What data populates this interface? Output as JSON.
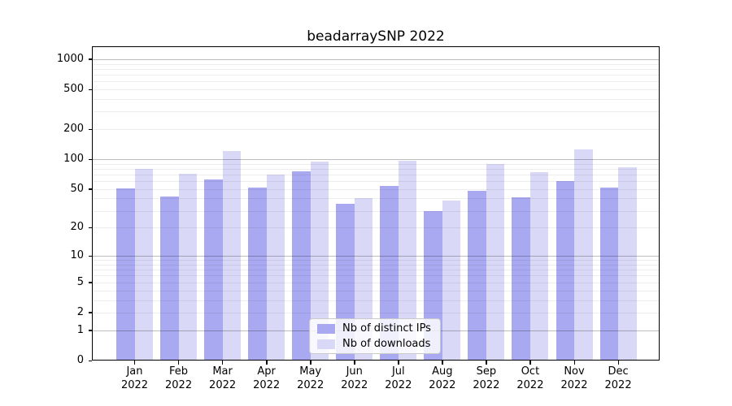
{
  "title": "beadarraySNP 2022",
  "y_axis": {
    "ticks": [
      0,
      1,
      2,
      5,
      10,
      20,
      50,
      100,
      200,
      500,
      1000
    ],
    "scale": "log10(value+1)"
  },
  "x_axis": {
    "year_label": "2022",
    "month_labels": [
      "Jan",
      "Feb",
      "Mar",
      "Apr",
      "May",
      "Jun",
      "Jul",
      "Aug",
      "Sep",
      "Oct",
      "Nov",
      "Dec"
    ]
  },
  "legend": {
    "items": [
      {
        "label": "Nb of distinct IPs",
        "color": "#a9a9f1"
      },
      {
        "label": "Nb of downloads",
        "color": "#d9d9f7"
      }
    ]
  },
  "colors": {
    "ips_bar": "#a9a9f1",
    "downloads_bar": "#d9d9f7",
    "major_grid": "rgba(0,0,0,0.26)",
    "minor_grid": "rgba(0,0,0,0.07)",
    "axis": "#000000",
    "background": "#ffffff"
  },
  "chart_data": {
    "type": "bar",
    "title": "beadarraySNP 2022",
    "categories": [
      "Jan 2022",
      "Feb 2022",
      "Mar 2022",
      "Apr 2022",
      "May 2022",
      "Jun 2022",
      "Jul 2022",
      "Aug 2022",
      "Sep 2022",
      "Oct 2022",
      "Nov 2022",
      "Dec 2022"
    ],
    "series": [
      {
        "name": "Nb of distinct IPs",
        "color": "#a9a9f1",
        "values": [
          51,
          42,
          63,
          52,
          76,
          35,
          54,
          30,
          48,
          41,
          60,
          52
        ]
      },
      {
        "name": "Nb of downloads",
        "color": "#d9d9f7",
        "values": [
          80,
          72,
          120,
          70,
          95,
          40,
          96,
          38,
          90,
          74,
          125,
          83
        ]
      }
    ],
    "y_scale": "log10(value+1)",
    "y_ticks": [
      0,
      1,
      2,
      5,
      10,
      20,
      50,
      100,
      200,
      500,
      1000
    ],
    "y_grid_major": [
      1,
      10,
      100,
      1000
    ],
    "y_grid_minor": [
      2,
      3,
      4,
      5,
      6,
      7,
      8,
      9,
      20,
      30,
      40,
      50,
      60,
      70,
      80,
      90,
      200,
      300,
      400,
      500,
      600,
      700,
      800,
      900
    ],
    "ylim": [
      0,
      1340
    ],
    "grid": true,
    "grid_over_bars": true,
    "legend_position": "lower center",
    "xlabel": "",
    "ylabel": ""
  }
}
